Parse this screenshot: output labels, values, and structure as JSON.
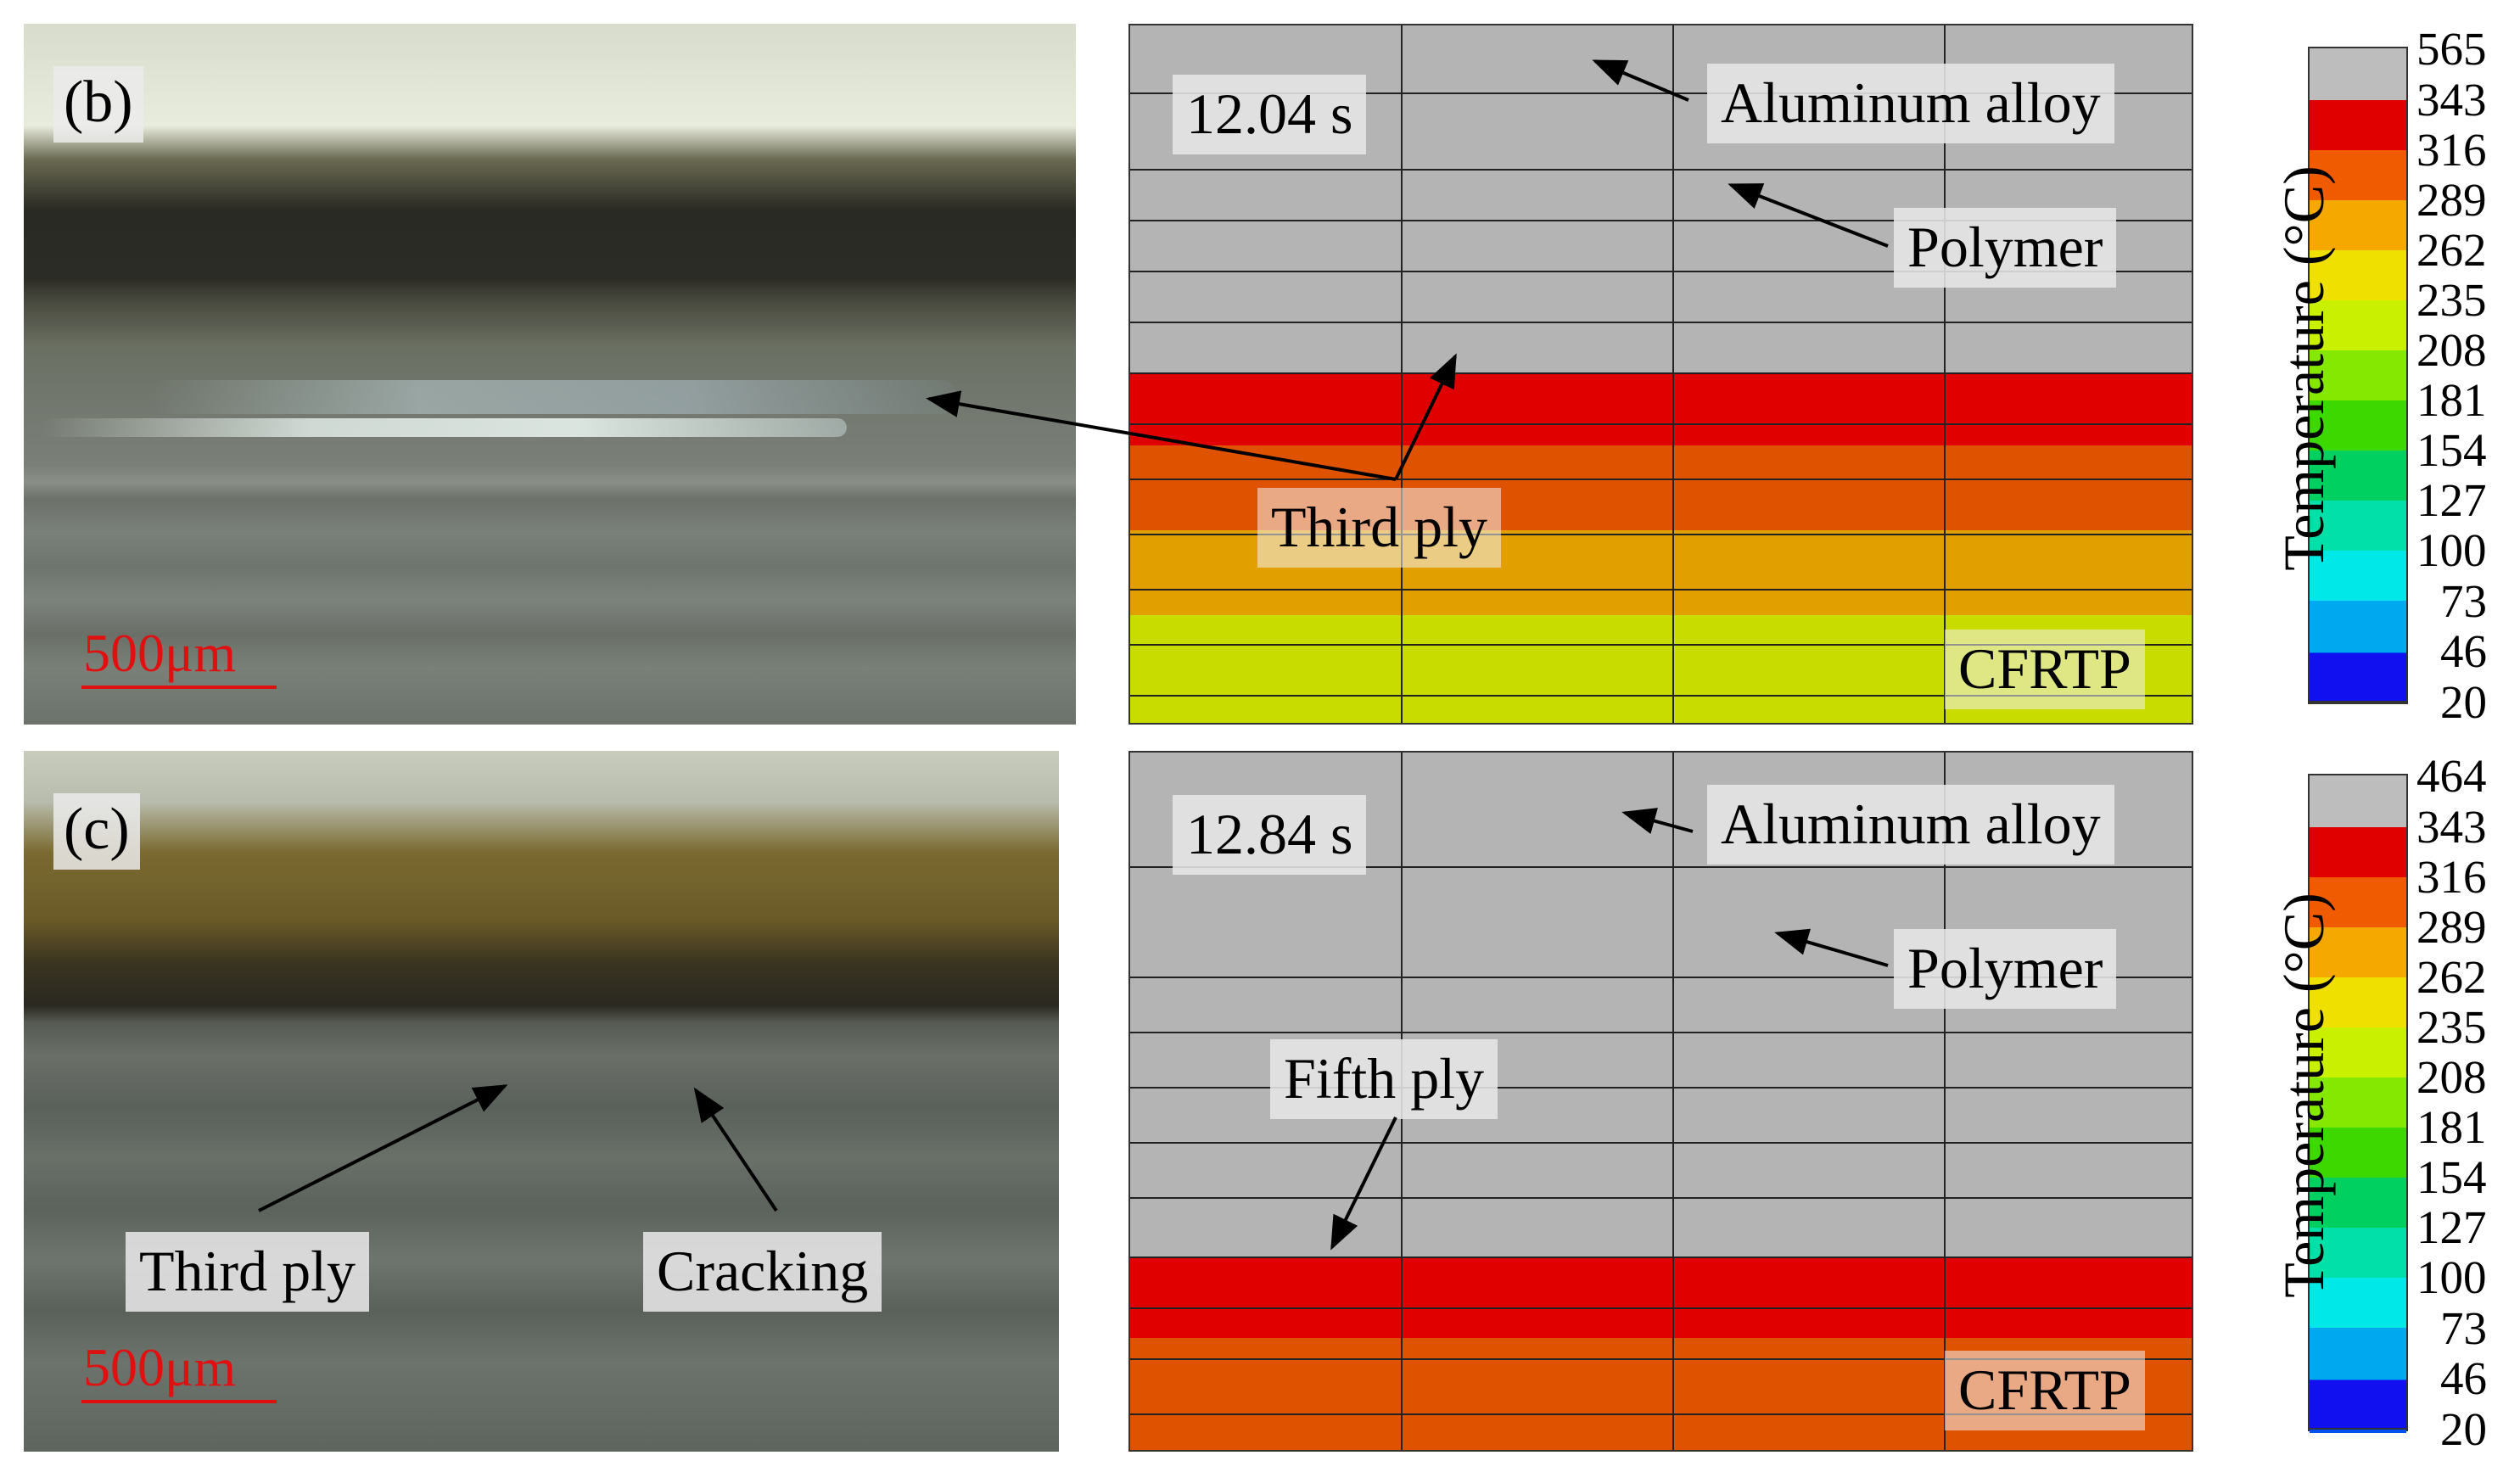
{
  "panel_b": {
    "id": "(b)",
    "scale_bar": "500μm",
    "time": "12.04 s",
    "labels": {
      "aluminum": "Aluminum alloy",
      "polymer": "Polymer",
      "ply": "Third ply",
      "cfrtp": "CFRTP"
    },
    "legend": {
      "title": "Temperature (°C)",
      "ticks": [
        "565",
        "343",
        "316",
        "289",
        "262",
        "235",
        "208",
        "181",
        "154",
        "127",
        "100",
        "73",
        "46",
        "20"
      ]
    }
  },
  "panel_c": {
    "id": "(c)",
    "scale_bar": "500μm",
    "time": "12.84 s",
    "labels": {
      "aluminum": "Aluminum alloy",
      "polymer": "Polymer",
      "ply": "Fifth ply",
      "cfrtp": "CFRTP",
      "photo_ply": "Third ply",
      "cracking": "Cracking"
    },
    "legend": {
      "title": "Temperature (°C)",
      "ticks": [
        "464",
        "343",
        "316",
        "289",
        "262",
        "235",
        "208",
        "181",
        "154",
        "127",
        "100",
        "73",
        "46",
        "20"
      ]
    }
  },
  "colors": {
    "max_gray": "#b4b4b4",
    "red": "#e00000",
    "orange_red": "#de5200",
    "orange": "#e2a000",
    "yellow_green": "#c8dc00",
    "legend": [
      "#bdbdbd",
      "#e00000",
      "#f05a00",
      "#f5a800",
      "#f0e000",
      "#c8f000",
      "#84e800",
      "#3cd800",
      "#00d060",
      "#00e0a8",
      "#00e8e8",
      "#00a8f0",
      "#0050f0",
      "#1010f0"
    ]
  }
}
